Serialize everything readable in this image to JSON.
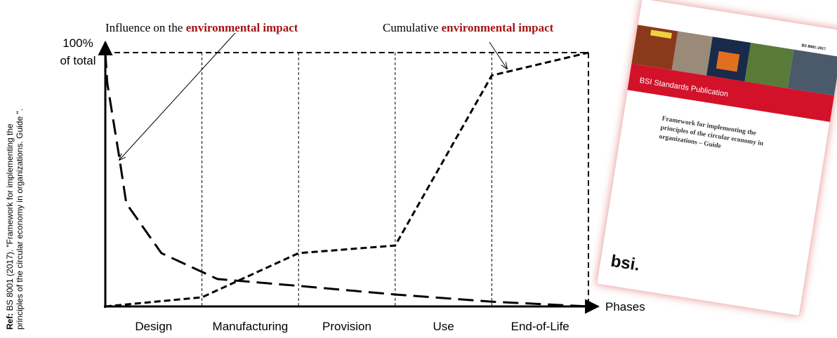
{
  "chart_data": {
    "type": "line",
    "categories": [
      "Design",
      "Manufacturing",
      "Provision",
      "Use",
      "End-of-Life"
    ],
    "xlabel": "Phases",
    "xlim": [
      0,
      5
    ],
    "ylim": [
      0,
      100
    ],
    "yticks": [
      {
        "value": 100,
        "label": "100%"
      }
    ],
    "ylabel": "of total",
    "annotations": [
      {
        "text": "Influence on the ",
        "emphasis": "environmental impact"
      },
      {
        "text": "Cumulative ",
        "emphasis": "environmental impact"
      }
    ],
    "emphasis_color": "#a31515",
    "series": [
      {
        "color": "#000000",
        "line_style": "long-dash",
        "x": [
          0,
          0.02,
          0.145,
          0.217,
          0.58,
          1.16,
          2.03,
          3,
          3.99,
          5
        ],
        "values": [
          100,
          88,
          58.6,
          40.6,
          21,
          10.8,
          8,
          4.7,
          1.9,
          0
        ]
      },
      {
        "color": "#000000",
        "line_style": "short-dash",
        "x": [
          0,
          1,
          2,
          3,
          4,
          5
        ],
        "values": [
          0,
          3.6,
          21,
          24,
          91,
          100
        ]
      }
    ]
  },
  "reference": {
    "label": "Ref:",
    "lines": [
      " BS 8001 (2017). \"Framework for implementing the",
      "principles of the circular economy in organizations. Guide \"."
    ]
  },
  "cover": {
    "code": "BS 8001:2017",
    "band": "BSI Standards Publication",
    "title_lines": [
      "Framework for implementing the",
      "principles of the circular economy in",
      "organizations – Guide"
    ],
    "logo": "bsi."
  }
}
